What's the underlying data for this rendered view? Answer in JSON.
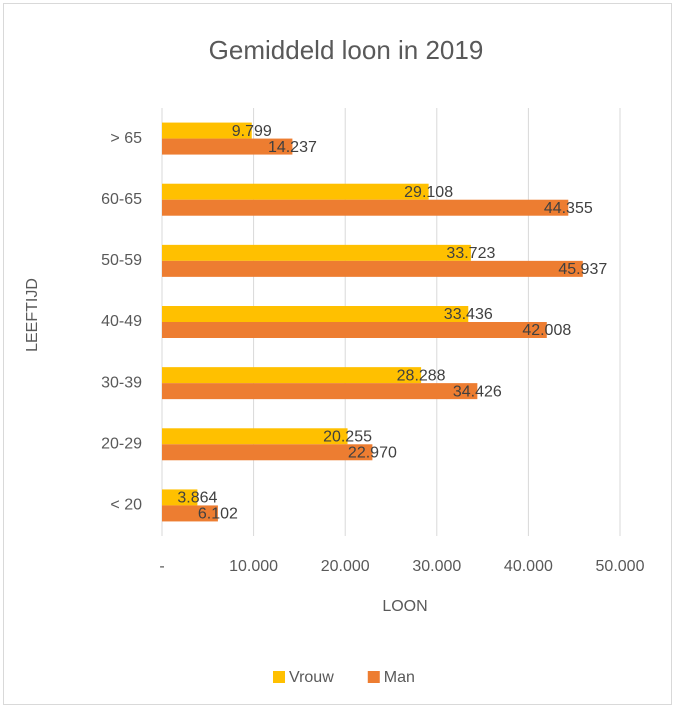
{
  "chart_data": {
    "type": "bar",
    "orientation": "horizontal",
    "title": "Gemiddeld loon in 2019",
    "xlabel": "LOON",
    "ylabel": "LEEFTIJD",
    "categories": [
      "< 20",
      "20-29",
      "30-39",
      "40-49",
      "50-59",
      "60-65",
      "> 65"
    ],
    "series": [
      {
        "name": "Vrouw",
        "color": "#FFC000",
        "values": [
          3864,
          20255,
          28288,
          33436,
          33723,
          29108,
          9799
        ],
        "value_labels": [
          "3.864",
          "20.255",
          "28.288",
          "33.436",
          "33.723",
          "29.108",
          "9.799"
        ]
      },
      {
        "name": "Man",
        "color": "#ED7D31",
        "values": [
          6102,
          22970,
          34426,
          42008,
          45937,
          44355,
          14237
        ],
        "value_labels": [
          "6.102",
          "22.970",
          "34.426",
          "42.008",
          "45.937",
          "44.355",
          "14.237"
        ]
      }
    ],
    "xlim": [
      0,
      50000
    ],
    "xticks": [
      {
        "value": 0,
        "label": "-"
      },
      {
        "value": 10000,
        "label": "10.000"
      },
      {
        "value": 20000,
        "label": "20.000"
      },
      {
        "value": 30000,
        "label": "30.000"
      },
      {
        "value": 40000,
        "label": "40.000"
      },
      {
        "value": 50000,
        "label": "50.000"
      }
    ],
    "grid": true,
    "legend": "bottom"
  }
}
